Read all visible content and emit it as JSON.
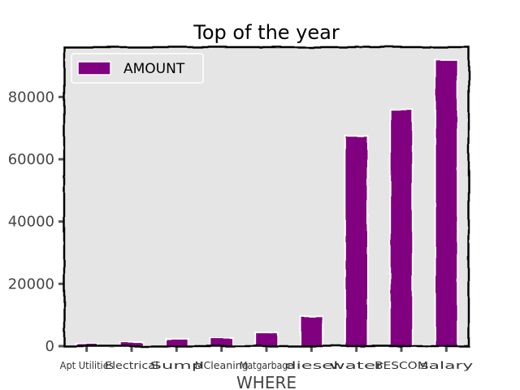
{
  "chart_data": {
    "type": "bar",
    "title": "Top of the year",
    "xlabel": "WHERE",
    "ylabel": "",
    "categories": [
      "Apt Utilities",
      "Electrical",
      "Sump",
      "MCleaning",
      "Matgarbage",
      "diesel",
      "water",
      "BESCOM",
      "salary"
    ],
    "series": [
      {
        "name": "AMOUNT",
        "values": [
          900,
          1400,
          2500,
          2700,
          4400,
          9700,
          67500,
          76000,
          92000
        ]
      }
    ],
    "ylim": [
      0,
      96000
    ],
    "yticks": [
      0,
      20000,
      40000,
      60000,
      80000
    ],
    "grid": false,
    "legend_position": "top-left",
    "colors": {
      "bar_fill": "#800080",
      "bar_edge": "#ffffff",
      "plot_background": "#e5e5e5",
      "axis_line": "#000000"
    }
  }
}
